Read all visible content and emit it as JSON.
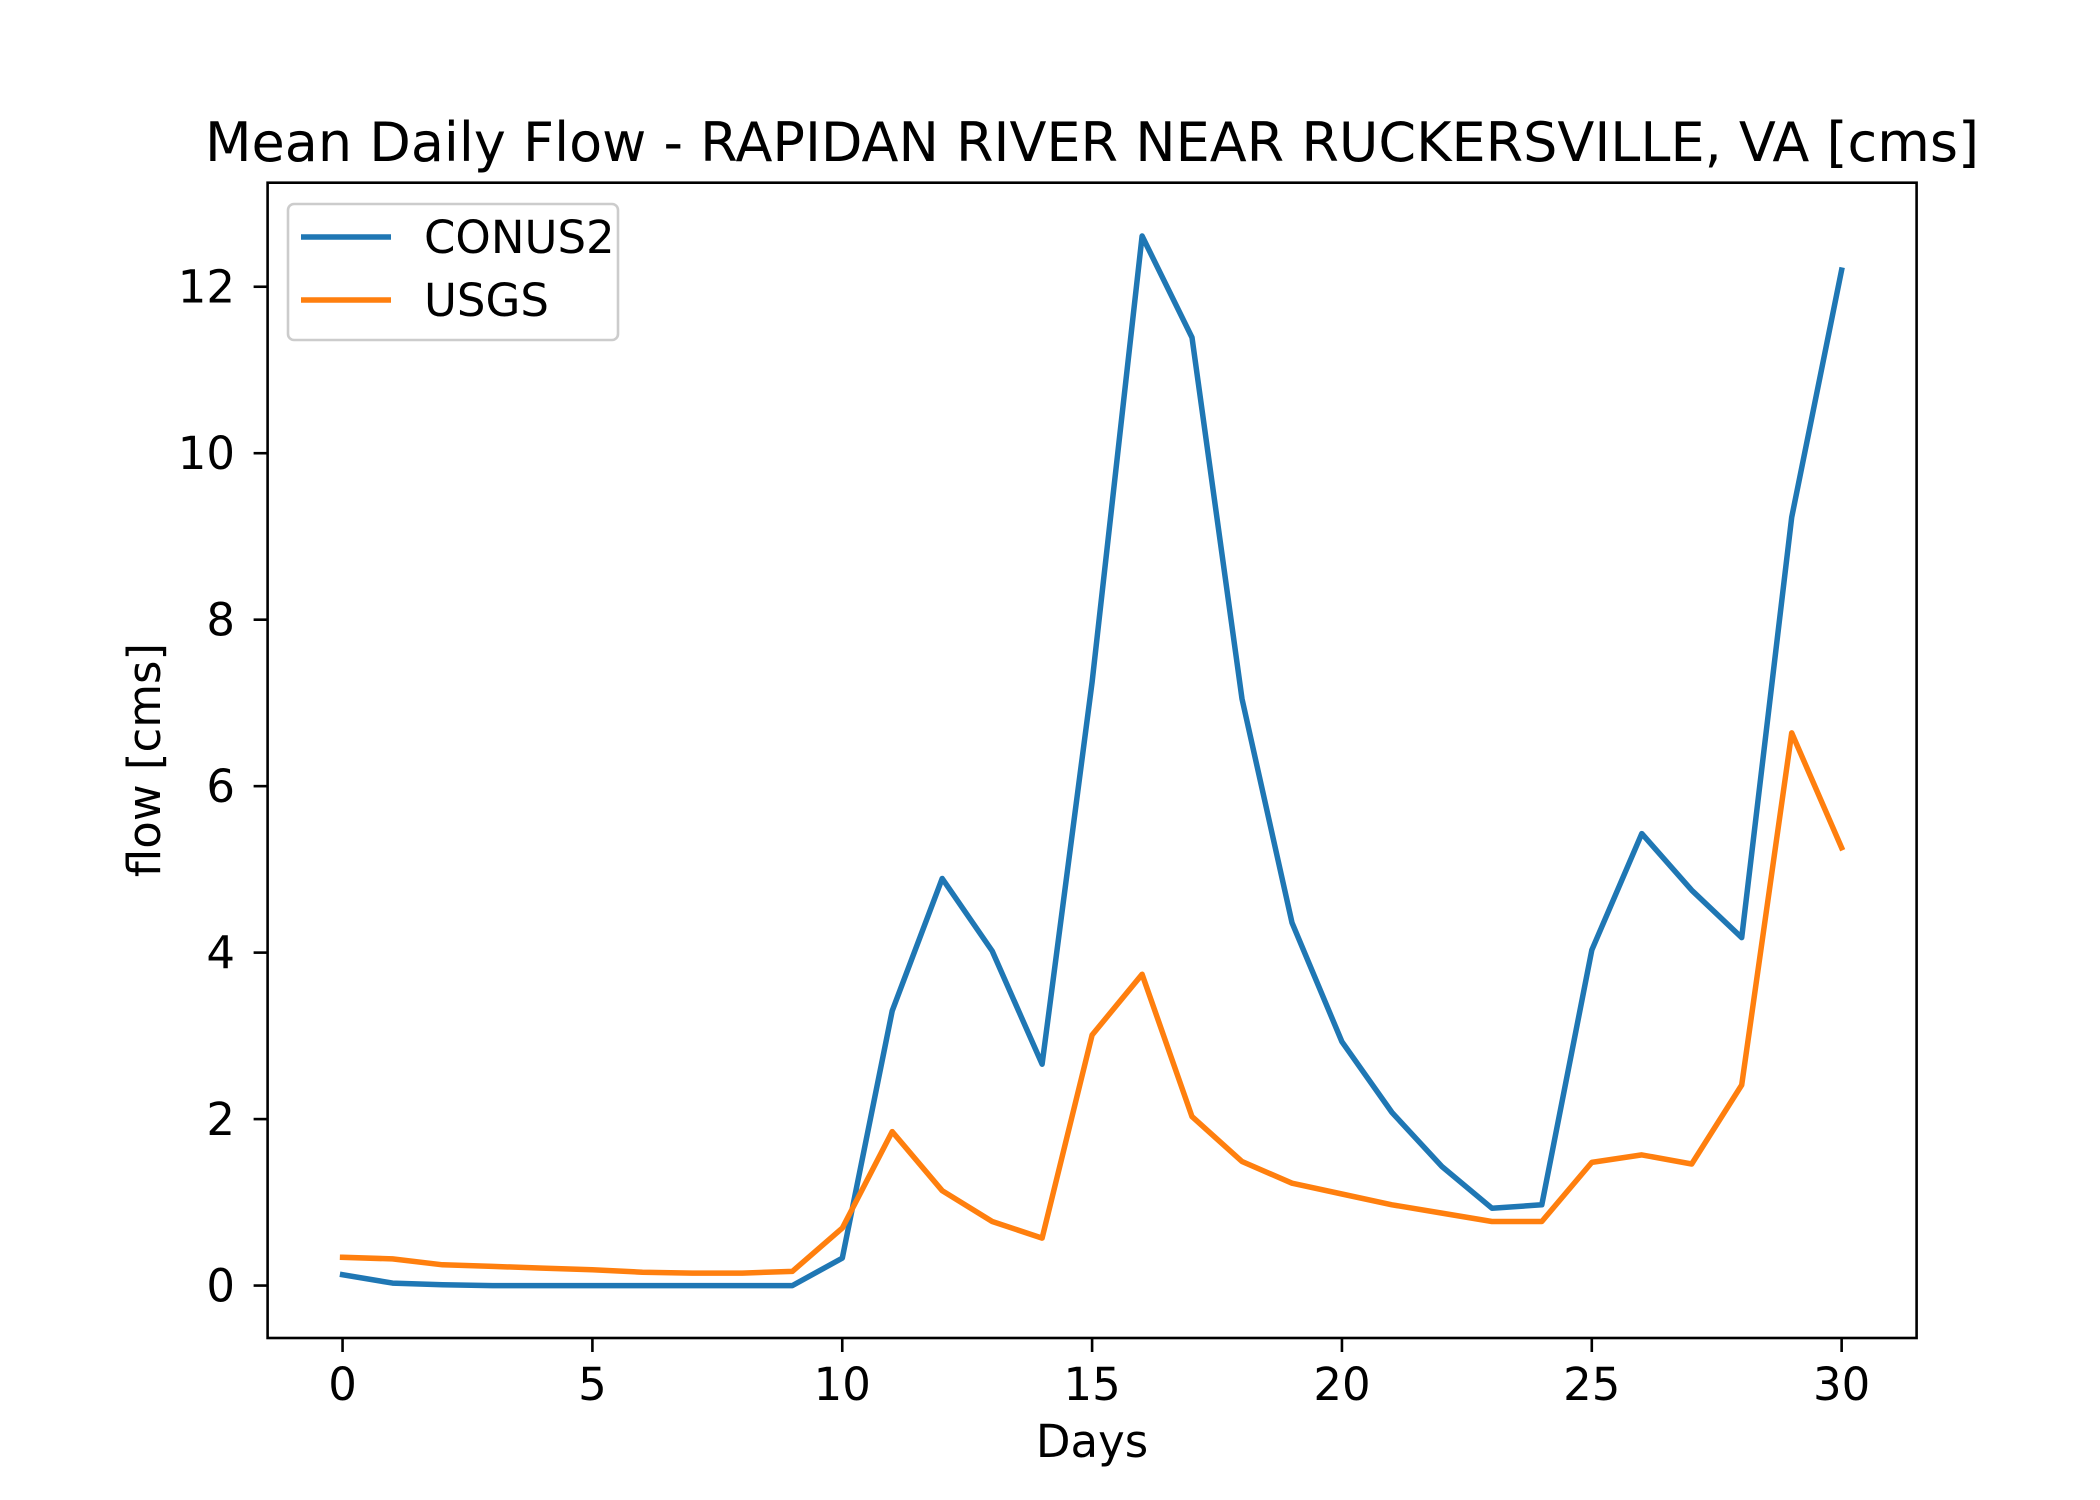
{
  "chart_data": {
    "type": "line",
    "title": "Mean Daily Flow - RAPIDAN RIVER NEAR RUCKERSVILLE, VA [cms]",
    "xlabel": "Days",
    "ylabel": "flow [cms]",
    "x": [
      0,
      1,
      2,
      3,
      4,
      5,
      6,
      7,
      8,
      9,
      10,
      11,
      12,
      13,
      14,
      15,
      16,
      17,
      18,
      19,
      20,
      21,
      22,
      23,
      24,
      25,
      26,
      27,
      28,
      29,
      30
    ],
    "series": [
      {
        "name": "CONUS2",
        "color": "#1f77b4",
        "values": [
          0.13,
          0.03,
          0.01,
          0,
          0,
          0,
          0,
          0,
          0,
          0,
          0.33,
          3.3,
          4.89,
          4.02,
          2.66,
          7.25,
          12.61,
          11.39,
          7.05,
          4.36,
          2.93,
          2.08,
          1.43,
          0.93,
          0.97,
          4.03,
          5.43,
          4.75,
          4.18,
          9.23,
          12.2
        ]
      },
      {
        "name": "USGS",
        "color": "#ff7f0e",
        "values": [
          0.34,
          0.32,
          0.25,
          0.23,
          0.21,
          0.19,
          0.16,
          0.15,
          0.15,
          0.17,
          0.69,
          1.85,
          1.14,
          0.77,
          0.57,
          3.01,
          3.74,
          2.03,
          1.49,
          1.23,
          1.1,
          0.97,
          0.87,
          0.77,
          0.77,
          1.48,
          1.57,
          1.46,
          2.41,
          6.64,
          5.26
        ]
      }
    ],
    "xlim": [
      -1.5,
      31.5
    ],
    "ylim": [
      -0.63,
      13.25
    ],
    "xticks": [
      0,
      5,
      10,
      15,
      20,
      25,
      30
    ],
    "yticks": [
      0,
      2,
      4,
      6,
      8,
      10,
      12
    ],
    "grid": false,
    "legend_position": "upper-left"
  }
}
